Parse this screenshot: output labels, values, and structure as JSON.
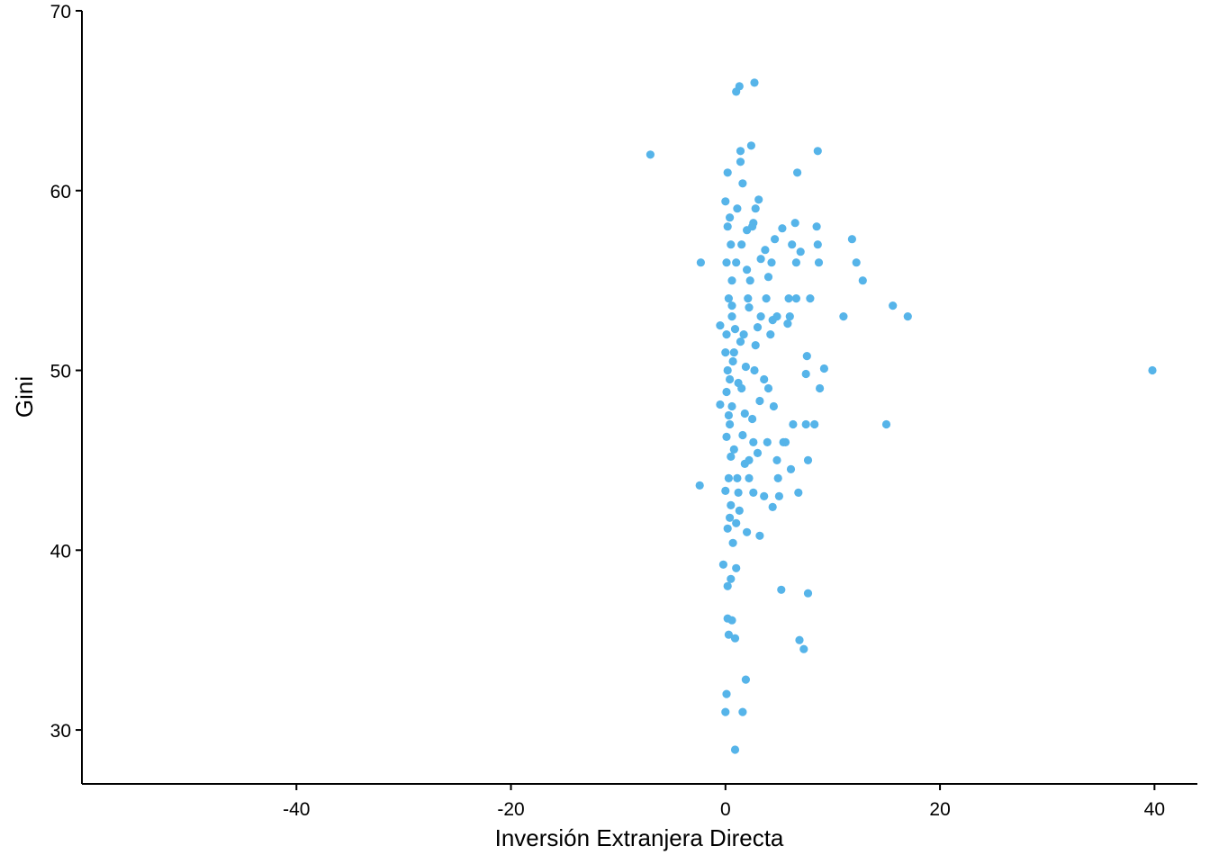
{
  "chart_data": {
    "type": "scatter",
    "title": "",
    "xlabel": "Inversión Extranjera Directa",
    "ylabel": "Gini",
    "xlim": [
      -60,
      44
    ],
    "ylim": [
      27,
      70
    ],
    "xticks": [
      -40,
      -20,
      0,
      20,
      40
    ],
    "yticks": [
      30,
      40,
      50,
      60,
      70
    ],
    "xtick_labels": [
      "-40",
      "-20",
      "0",
      "20",
      "40"
    ],
    "ytick_labels": [
      "30",
      "40",
      "50",
      "60",
      "70"
    ],
    "grid": false,
    "legend": "none",
    "point_color": "#56B4E9",
    "series": [
      {
        "points": [
          [
            -7.0,
            62.0
          ],
          [
            39.8,
            50.0
          ],
          [
            17.0,
            53.0
          ],
          [
            15.6,
            53.6
          ],
          [
            15.0,
            47.0
          ],
          [
            12.8,
            55.0
          ],
          [
            12.2,
            56.0
          ],
          [
            11.8,
            57.3
          ],
          [
            11.0,
            53.0
          ],
          [
            9.2,
            50.1
          ],
          [
            8.8,
            49.0
          ],
          [
            8.6,
            62.2
          ],
          [
            8.7,
            56.0
          ],
          [
            8.6,
            57.0
          ],
          [
            8.5,
            58.0
          ],
          [
            8.3,
            47.0
          ],
          [
            7.9,
            54.0
          ],
          [
            7.7,
            45.0
          ],
          [
            7.6,
            50.8
          ],
          [
            7.5,
            49.8
          ],
          [
            7.5,
            47.0
          ],
          [
            7.3,
            34.5
          ],
          [
            7.0,
            56.6
          ],
          [
            6.9,
            35.0
          ],
          [
            6.7,
            61.0
          ],
          [
            6.6,
            56.0
          ],
          [
            6.5,
            58.2
          ],
          [
            6.2,
            57.0
          ],
          [
            6.0,
            53.0
          ],
          [
            5.8,
            52.6
          ],
          [
            5.2,
            37.8
          ],
          [
            7.7,
            37.6
          ],
          [
            6.8,
            43.2
          ],
          [
            6.1,
            44.5
          ],
          [
            5.6,
            46.0
          ],
          [
            4.9,
            44.0
          ],
          [
            4.4,
            42.4
          ],
          [
            3.2,
            40.8
          ],
          [
            3.1,
            59.5
          ],
          [
            2.8,
            59.0
          ],
          [
            2.6,
            58.2
          ],
          [
            1.6,
            60.4
          ],
          [
            1.4,
            61.6
          ],
          [
            1.4,
            62.2
          ],
          [
            2.4,
            62.5
          ],
          [
            2.7,
            66.0
          ],
          [
            1.3,
            65.8
          ],
          [
            1.0,
            65.5
          ],
          [
            0.2,
            61.0
          ],
          [
            0.0,
            59.4
          ],
          [
            -2.3,
            56.0
          ],
          [
            -2.4,
            43.6
          ],
          [
            -0.5,
            52.5
          ],
          [
            -0.5,
            48.1
          ],
          [
            1.6,
            31.0
          ],
          [
            0.0,
            31.0
          ],
          [
            0.1,
            32.0
          ],
          [
            1.9,
            32.8
          ],
          [
            0.9,
            28.9
          ],
          [
            0.9,
            35.1
          ],
          [
            0.3,
            35.3
          ],
          [
            0.6,
            36.1
          ],
          [
            0.2,
            36.2
          ],
          [
            0.2,
            38.0
          ],
          [
            0.5,
            38.4
          ],
          [
            -0.2,
            39.2
          ],
          [
            1.0,
            39.0
          ],
          [
            2.0,
            41.0
          ],
          [
            0.4,
            41.8
          ],
          [
            1.3,
            42.2
          ],
          [
            0.0,
            43.3
          ],
          [
            2.6,
            43.2
          ],
          [
            0.3,
            44.0
          ],
          [
            1.8,
            44.8
          ],
          [
            0.5,
            45.2
          ],
          [
            3.0,
            45.4
          ],
          [
            0.1,
            46.3
          ],
          [
            1.6,
            46.4
          ],
          [
            0.4,
            47.0
          ],
          [
            2.5,
            47.3
          ],
          [
            0.6,
            48.0
          ],
          [
            3.2,
            48.3
          ],
          [
            0.1,
            48.8
          ],
          [
            1.5,
            49.0
          ],
          [
            0.4,
            49.5
          ],
          [
            3.6,
            49.5
          ],
          [
            0.2,
            50.0
          ],
          [
            1.9,
            50.2
          ],
          [
            0.8,
            51.0
          ],
          [
            2.8,
            51.4
          ],
          [
            0.1,
            52.0
          ],
          [
            3.0,
            52.4
          ],
          [
            0.6,
            53.0
          ],
          [
            4.4,
            52.8
          ],
          [
            0.3,
            54.0
          ],
          [
            2.2,
            53.5
          ],
          [
            0.6,
            55.0
          ],
          [
            4.0,
            55.2
          ],
          [
            0.1,
            56.0
          ],
          [
            3.3,
            56.2
          ],
          [
            0.5,
            57.0
          ],
          [
            4.6,
            57.3
          ],
          [
            0.2,
            58.0
          ],
          [
            2.5,
            58.0
          ],
          [
            0.0,
            51.0
          ],
          [
            0.7,
            50.5
          ],
          [
            1.2,
            49.3
          ],
          [
            2.6,
            46.0
          ],
          [
            3.9,
            46.0
          ],
          [
            4.8,
            45.0
          ],
          [
            3.6,
            43.0
          ],
          [
            5.0,
            43.0
          ],
          [
            1.1,
            44.0
          ],
          [
            2.2,
            44.0
          ],
          [
            0.5,
            42.5
          ],
          [
            1.0,
            41.5
          ],
          [
            0.2,
            41.2
          ],
          [
            0.7,
            40.4
          ],
          [
            2.1,
            54.0
          ],
          [
            3.8,
            54.0
          ],
          [
            5.9,
            54.0
          ],
          [
            1.7,
            52.0
          ],
          [
            3.3,
            53.0
          ],
          [
            4.2,
            52.0
          ],
          [
            1.0,
            56.0
          ],
          [
            2.3,
            55.0
          ],
          [
            3.7,
            56.7
          ],
          [
            1.5,
            57.0
          ],
          [
            2.0,
            55.6
          ],
          [
            6.3,
            47.0
          ],
          [
            4.5,
            48.0
          ],
          [
            1.8,
            47.6
          ],
          [
            2.2,
            45.0
          ],
          [
            1.2,
            43.2
          ],
          [
            0.8,
            45.6
          ],
          [
            0.3,
            47.5
          ],
          [
            5.4,
            46.0
          ],
          [
            0.6,
            53.6
          ],
          [
            0.9,
            52.3
          ],
          [
            1.4,
            51.6
          ],
          [
            2.7,
            50.0
          ],
          [
            4.0,
            49.0
          ],
          [
            4.8,
            53.0
          ],
          [
            6.6,
            54.0
          ],
          [
            5.3,
            57.9
          ],
          [
            0.4,
            58.5
          ],
          [
            1.1,
            59.0
          ],
          [
            2.0,
            57.8
          ],
          [
            4.3,
            56.0
          ]
        ]
      }
    ]
  }
}
